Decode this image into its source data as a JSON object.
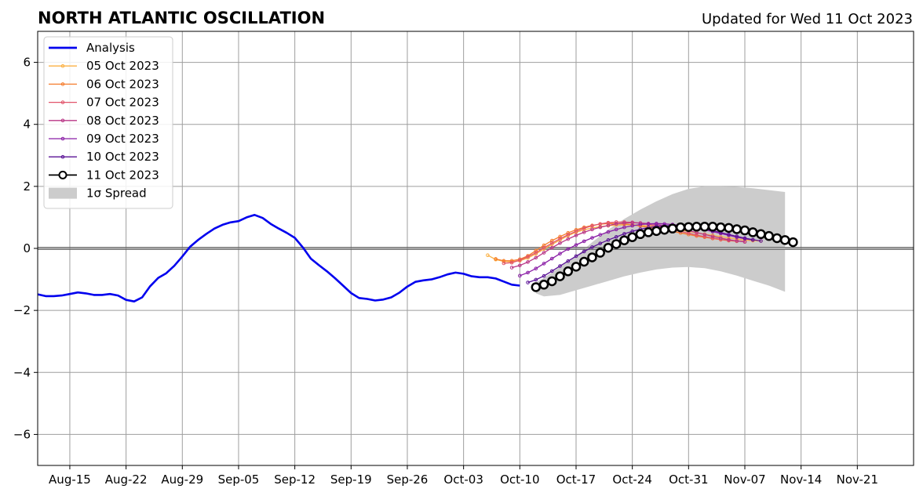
{
  "chart_data": {
    "type": "line",
    "title": "NORTH ATLANTIC OSCILLATION",
    "subtitle": "Updated for Wed 11 Oct 2023",
    "xlabel": "",
    "ylabel": "",
    "x_range": [
      "2023-08-11",
      "2023-11-28"
    ],
    "ylim": [
      -7,
      7
    ],
    "grid": true,
    "legend_position": "top-left",
    "x_ticks": [
      "2023-08-15",
      "2023-08-22",
      "2023-08-29",
      "2023-09-05",
      "2023-09-12",
      "2023-09-19",
      "2023-09-26",
      "2023-10-03",
      "2023-10-10",
      "2023-10-17",
      "2023-10-24",
      "2023-10-31",
      "2023-11-07",
      "2023-11-14",
      "2023-11-21"
    ],
    "x_tick_labels": [
      "Aug-15",
      "Aug-22",
      "Aug-29",
      "Sep-05",
      "Sep-12",
      "Sep-19",
      "Sep-26",
      "Oct-03",
      "Oct-10",
      "Oct-17",
      "Oct-24",
      "Oct-31",
      "Nov-07",
      "Nov-14",
      "Nov-21"
    ],
    "y_ticks": [
      -6,
      -4,
      -2,
      0,
      2,
      4,
      6
    ],
    "y_tick_labels": [
      "−6",
      "−4",
      "−2",
      "0",
      "2",
      "4",
      "6"
    ],
    "analysis": {
      "name": "Analysis",
      "color": "#0000ee",
      "start": "2023-08-11",
      "values": [
        -1.48,
        -1.54,
        -1.54,
        -1.52,
        -1.47,
        -1.42,
        -1.45,
        -1.5,
        -1.5,
        -1.47,
        -1.52,
        -1.66,
        -1.71,
        -1.58,
        -1.22,
        -0.95,
        -0.8,
        -0.56,
        -0.26,
        0.06,
        0.28,
        0.47,
        0.64,
        0.76,
        0.84,
        0.88,
        1.0,
        1.08,
        0.98,
        0.79,
        0.64,
        0.5,
        0.34,
        0.03,
        -0.33,
        -0.54,
        -0.74,
        -0.96,
        -1.2,
        -1.44,
        -1.6,
        -1.63,
        -1.68,
        -1.65,
        -1.58,
        -1.43,
        -1.23,
        -1.08,
        -1.03,
        -1.0,
        -0.93,
        -0.84,
        -0.78,
        -0.82,
        -0.9,
        -0.93,
        -0.93,
        -0.97,
        -1.07,
        -1.17,
        -1.2
      ]
    },
    "spread": {
      "name": "1σ Spread",
      "color": "#cccccc",
      "x": [
        "2023-10-12",
        "2023-10-13",
        "2023-10-15",
        "2023-10-17",
        "2023-10-19",
        "2023-10-21",
        "2023-10-23",
        "2023-10-25",
        "2023-10-27",
        "2023-10-29",
        "2023-10-31",
        "2023-11-02",
        "2023-11-04",
        "2023-11-06",
        "2023-11-08",
        "2023-11-10",
        "2023-11-12"
      ],
      "upper": [
        -1.1,
        -0.95,
        -0.6,
        -0.25,
        0.2,
        0.6,
        0.95,
        1.25,
        1.52,
        1.75,
        1.92,
        2.0,
        2.0,
        1.98,
        1.94,
        1.88,
        1.82
      ],
      "lower": [
        -1.45,
        -1.55,
        -1.5,
        -1.35,
        -1.2,
        -1.05,
        -0.9,
        -0.78,
        -0.68,
        -0.62,
        -0.6,
        -0.64,
        -0.74,
        -0.88,
        -1.04,
        -1.2,
        -1.4
      ]
    },
    "series": [
      {
        "name": "05 Oct 2023",
        "color": "#fbb043",
        "start": "2023-10-06",
        "values": [
          -0.22,
          -0.36,
          -0.42,
          -0.43,
          -0.4,
          -0.31,
          -0.18,
          -0.02,
          0.13,
          0.27,
          0.41,
          0.52,
          0.6,
          0.66,
          0.7,
          0.73,
          0.75,
          0.76,
          0.76,
          0.74,
          0.72,
          0.69,
          0.66,
          0.63,
          0.59,
          0.55,
          0.5,
          0.46,
          0.42,
          0.38,
          0.34,
          0.3,
          0.27,
          0.25,
          0.24
        ]
      },
      {
        "name": "06 Oct 2023",
        "color": "#f57c2d",
        "start": "2023-10-07",
        "values": [
          -0.34,
          -0.4,
          -0.4,
          -0.35,
          -0.24,
          -0.07,
          0.1,
          0.25,
          0.38,
          0.5,
          0.6,
          0.68,
          0.74,
          0.78,
          0.8,
          0.8,
          0.79,
          0.76,
          0.72,
          0.68,
          0.64,
          0.6,
          0.55,
          0.5,
          0.45,
          0.4,
          0.36,
          0.32,
          0.28,
          0.25,
          0.23
        ]
      },
      {
        "name": "07 Oct 2023",
        "color": "#e1546a",
        "start": "2023-10-08",
        "values": [
          -0.48,
          -0.46,
          -0.38,
          -0.27,
          -0.14,
          0.02,
          0.17,
          0.31,
          0.44,
          0.55,
          0.65,
          0.73,
          0.79,
          0.83,
          0.85,
          0.85,
          0.84,
          0.81,
          0.77,
          0.72,
          0.67,
          0.61,
          0.55,
          0.49,
          0.43,
          0.38,
          0.33,
          0.29,
          0.26,
          0.24,
          0.22
        ]
      },
      {
        "name": "08 Oct 2023",
        "color": "#b93686",
        "start": "2023-10-09",
        "values": [
          -0.62,
          -0.55,
          -0.44,
          -0.3,
          -0.14,
          0.02,
          0.17,
          0.3,
          0.42,
          0.52,
          0.61,
          0.68,
          0.74,
          0.79,
          0.82,
          0.83,
          0.82,
          0.8,
          0.77,
          0.73,
          0.68,
          0.63,
          0.57,
          0.51,
          0.45,
          0.39,
          0.33,
          0.28,
          0.24,
          0.21
        ]
      },
      {
        "name": "09 Oct 2023",
        "color": "#8a1ea6",
        "start": "2023-10-10",
        "values": [
          -0.88,
          -0.78,
          -0.65,
          -0.49,
          -0.33,
          -0.17,
          -0.02,
          0.11,
          0.23,
          0.34,
          0.44,
          0.53,
          0.61,
          0.68,
          0.73,
          0.77,
          0.79,
          0.8,
          0.79,
          0.77,
          0.74,
          0.7,
          0.65,
          0.6,
          0.54,
          0.48,
          0.42,
          0.36,
          0.31,
          0.27
        ]
      },
      {
        "name": "10 Oct 2023",
        "color": "#5a1296",
        "start": "2023-10-11",
        "values": [
          -1.1,
          -1.01,
          -0.89,
          -0.73,
          -0.57,
          -0.41,
          -0.25,
          -0.1,
          0.04,
          0.16,
          0.27,
          0.37,
          0.47,
          0.55,
          0.62,
          0.67,
          0.71,
          0.73,
          0.74,
          0.73,
          0.7,
          0.67,
          0.62,
          0.57,
          0.51,
          0.45,
          0.39,
          0.33,
          0.28,
          0.24
        ]
      },
      {
        "name": "11 Oct 2023",
        "color": "#000000",
        "start": "2023-10-12",
        "values": [
          -1.25,
          -1.17,
          -1.06,
          -0.9,
          -0.74,
          -0.59,
          -0.43,
          -0.29,
          -0.14,
          0.02,
          0.14,
          0.26,
          0.36,
          0.46,
          0.52,
          0.56,
          0.6,
          0.64,
          0.68,
          0.69,
          0.7,
          0.7,
          0.7,
          0.68,
          0.66,
          0.62,
          0.58,
          0.52,
          0.46,
          0.4,
          0.33,
          0.27,
          0.2
        ]
      }
    ]
  }
}
